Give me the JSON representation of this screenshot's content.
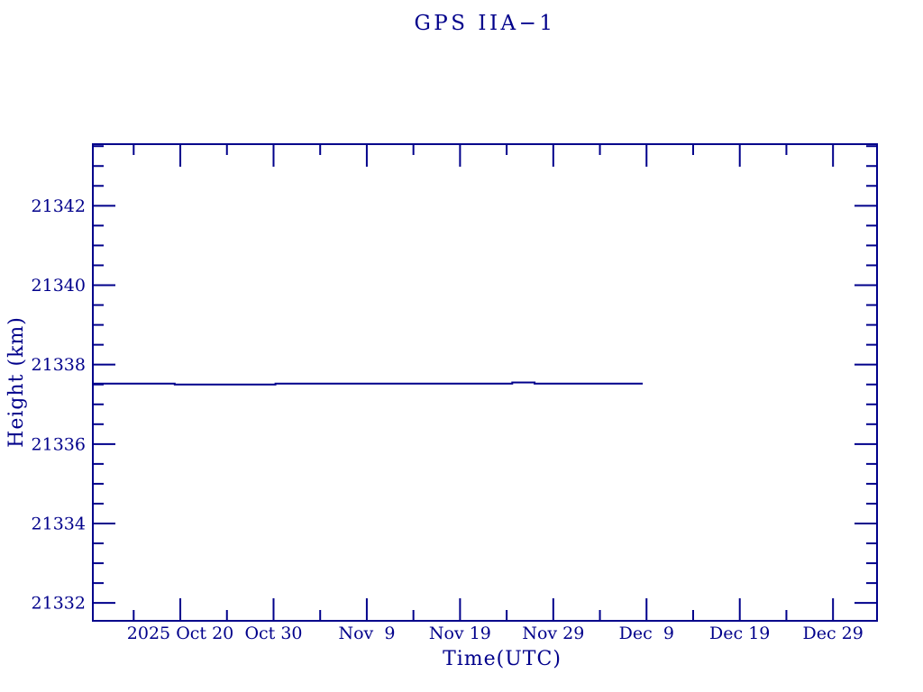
{
  "figure": {
    "title": "GPS IIA−1",
    "xlabel": "Time(UTC)",
    "ylabel": "Height (km)"
  },
  "colors": {
    "ink": "#00008B",
    "background": "#FFFFFF"
  },
  "chart_data": {
    "type": "line",
    "title": "GPS IIA−1",
    "xlabel": "Time(UTC)",
    "ylabel": "Height (km)",
    "grid": false,
    "legend": false,
    "x_axis": {
      "unit": "days from 2025 Oct 20",
      "range_days": [
        -9.38,
        74.72
      ],
      "minor_tick_step_days": 5,
      "major_ticks": [
        {
          "day": 0,
          "label": "2025 Oct 20"
        },
        {
          "day": 10,
          "label": "Oct 30"
        },
        {
          "day": 20,
          "label": "Nov  9"
        },
        {
          "day": 30,
          "label": "Nov 19"
        },
        {
          "day": 40,
          "label": "Nov 29"
        },
        {
          "day": 50,
          "label": "Dec  9"
        },
        {
          "day": 60,
          "label": "Dec 19"
        },
        {
          "day": 70,
          "label": "Dec 29"
        }
      ]
    },
    "y_axis": {
      "unit": "km",
      "range": [
        21331.55,
        21343.55
      ],
      "minor_tick_step": 0.5,
      "major_ticks": [
        21332,
        21334,
        21336,
        21338,
        21340,
        21342
      ]
    },
    "series": [
      {
        "name": "GPS IIA-1 height",
        "color": "#00008B",
        "points": [
          {
            "date": "2025-10-10",
            "day": -9.38,
            "height_km": 21337.52
          },
          {
            "date": "2025-10-19",
            "day": -0.6,
            "height_km": 21337.52
          },
          {
            "date": "2025-10-19",
            "day": -0.6,
            "height_km": 21337.5
          },
          {
            "date": "2025-10-30",
            "day": 10.2,
            "height_km": 21337.5
          },
          {
            "date": "2025-10-30",
            "day": 10.2,
            "height_km": 21337.52
          },
          {
            "date": "2025-11-24",
            "day": 35.6,
            "height_km": 21337.52
          },
          {
            "date": "2025-11-24",
            "day": 35.6,
            "height_km": 21337.55
          },
          {
            "date": "2025-11-27",
            "day": 38.0,
            "height_km": 21337.55
          },
          {
            "date": "2025-11-27",
            "day": 38.0,
            "height_km": 21337.52
          },
          {
            "date": "2025-12-08",
            "day": 49.6,
            "height_km": 21337.52
          }
        ]
      }
    ]
  }
}
